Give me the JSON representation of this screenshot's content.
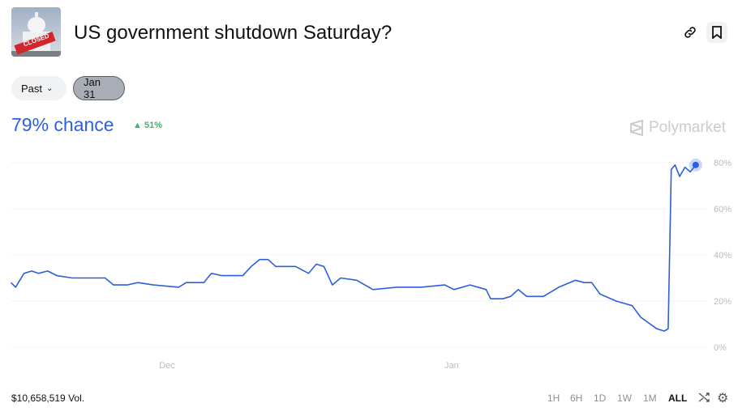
{
  "header": {
    "title": "US government shutdown Saturday?",
    "thumbnail_text": "CLOSED",
    "link_icon": "link-icon",
    "bookmark_icon": "bookmark-icon"
  },
  "filters": {
    "past_label": "Past",
    "date_label": "Jan 31"
  },
  "summary": {
    "chance": "79% chance",
    "delta": "51%",
    "delta_direction": "up",
    "brand": "Polymarket"
  },
  "footer": {
    "volume": "$10,658,519 Vol.",
    "ranges": [
      "1H",
      "6H",
      "1D",
      "1W",
      "1M",
      "ALL"
    ],
    "active_range": "ALL"
  },
  "colors": {
    "line": "#2c5fdc",
    "up": "#3db46d"
  },
  "chart_data": {
    "type": "line",
    "x_ticks": [
      "Dec",
      "Jan"
    ],
    "y_ticks": [
      "80%",
      "60%",
      "40%",
      "20%",
      "0%"
    ],
    "ylim": [
      0,
      80
    ],
    "grid": true,
    "points": [
      [
        "2025-11-14T00:00",
        28
      ],
      [
        "2025-11-14T12:00",
        26
      ],
      [
        "2025-11-15T10:00",
        32
      ],
      [
        "2025-11-16T06:00",
        33
      ],
      [
        "2025-11-17T00:00",
        32
      ],
      [
        "2025-11-18T00:00",
        33
      ],
      [
        "2025-11-19T00:00",
        31
      ],
      [
        "2025-11-20T16:00",
        30
      ],
      [
        "2025-11-24T06:00",
        30
      ],
      [
        "2025-11-25T04:00",
        27
      ],
      [
        "2025-11-26T16:00",
        27
      ],
      [
        "2025-11-27T20:00",
        28
      ],
      [
        "2025-11-29T12:00",
        27
      ],
      [
        "2025-12-02T06:00",
        26
      ],
      [
        "2025-12-03T02:00",
        28
      ],
      [
        "2025-12-05T00:00",
        28
      ],
      [
        "2025-12-05T20:00",
        32
      ],
      [
        "2025-12-07T00:00",
        31
      ],
      [
        "2025-12-09T06:00",
        31
      ],
      [
        "2025-12-10T04:00",
        35
      ],
      [
        "2025-12-11T02:00",
        38
      ],
      [
        "2025-12-12T00:00",
        38
      ],
      [
        "2025-12-12T20:00",
        35
      ],
      [
        "2025-12-15T00:00",
        35
      ],
      [
        "2025-12-16T10:00",
        32
      ],
      [
        "2025-12-17T06:00",
        36
      ],
      [
        "2025-12-18T02:00",
        35
      ],
      [
        "2025-12-19T00:00",
        27
      ],
      [
        "2025-12-19T22:00",
        30
      ],
      [
        "2025-12-21T16:00",
        29
      ],
      [
        "2025-12-23T10:00",
        25
      ],
      [
        "2025-12-26T00:00",
        26
      ],
      [
        "2025-12-28T16:00",
        26
      ],
      [
        "2025-12-31T06:00",
        27
      ],
      [
        "2026-01-01T06:00",
        25
      ],
      [
        "2026-01-03T00:00",
        27
      ],
      [
        "2026-01-04T18:00",
        25
      ],
      [
        "2026-01-05T06:00",
        21
      ],
      [
        "2026-01-06T14:00",
        21
      ],
      [
        "2026-01-07T10:00",
        22
      ],
      [
        "2026-01-08T06:00",
        25
      ],
      [
        "2026-01-09T04:00",
        22
      ],
      [
        "2026-01-11T00:00",
        22
      ],
      [
        "2026-01-12T16:00",
        26
      ],
      [
        "2026-01-14T12:00",
        29
      ],
      [
        "2026-01-15T10:00",
        28
      ],
      [
        "2026-01-16T06:00",
        28
      ],
      [
        "2026-01-17T04:00",
        23
      ],
      [
        "2026-01-18T22:00",
        20
      ],
      [
        "2026-01-20T16:00",
        18
      ],
      [
        "2026-01-21T14:00",
        13
      ],
      [
        "2026-01-23T08:00",
        8
      ],
      [
        "2026-01-24T04:00",
        7
      ],
      [
        "2026-01-24T14:00",
        8
      ],
      [
        "2026-01-24T22:00",
        77
      ],
      [
        "2026-01-25T08:00",
        79
      ],
      [
        "2026-01-25T20:00",
        74
      ],
      [
        "2026-01-26T10:00",
        78
      ],
      [
        "2026-01-27T00:00",
        76
      ],
      [
        "2026-01-27T14:00",
        79
      ]
    ]
  }
}
